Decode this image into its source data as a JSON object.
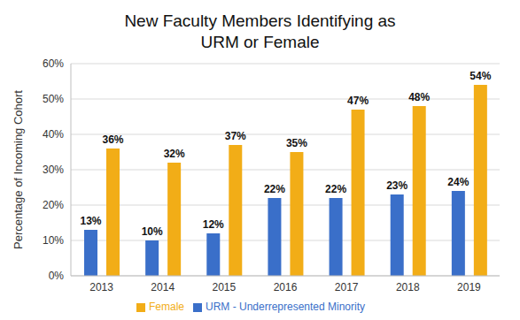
{
  "chart_data": {
    "type": "bar",
    "title": "New Faculty Members Identifying as\nURM or Female",
    "y_label": "Percentage of Incoming Cohort",
    "categories": [
      "2013",
      "2014",
      "2015",
      "2016",
      "2017",
      "2018",
      "2019"
    ],
    "series": [
      {
        "name": "URM - Underrepresented Minority",
        "color": "#3a6fc9",
        "values": [
          13,
          10,
          12,
          22,
          22,
          23,
          24
        ],
        "value_labels": [
          "13%",
          "10%",
          "12%",
          "22%",
          "22%",
          "23%",
          "24%"
        ]
      },
      {
        "name": "Female",
        "color": "#f2ad17",
        "values": [
          36,
          32,
          37,
          35,
          47,
          48,
          54
        ],
        "value_labels": [
          "36%",
          "32%",
          "37%",
          "35%",
          "47%",
          "48%",
          "54%"
        ]
      }
    ],
    "ylim": [
      0,
      60
    ],
    "yticks": [
      {
        "value": 0,
        "label": "0%"
      },
      {
        "value": 10,
        "label": "10%"
      },
      {
        "value": 20,
        "label": "20%"
      },
      {
        "value": 30,
        "label": "30%"
      },
      {
        "value": 40,
        "label": "40%"
      },
      {
        "value": 50,
        "label": "50%"
      },
      {
        "value": 60,
        "label": "60%"
      }
    ],
    "grid": true,
    "legend": "bottom",
    "data_labels": true
  }
}
